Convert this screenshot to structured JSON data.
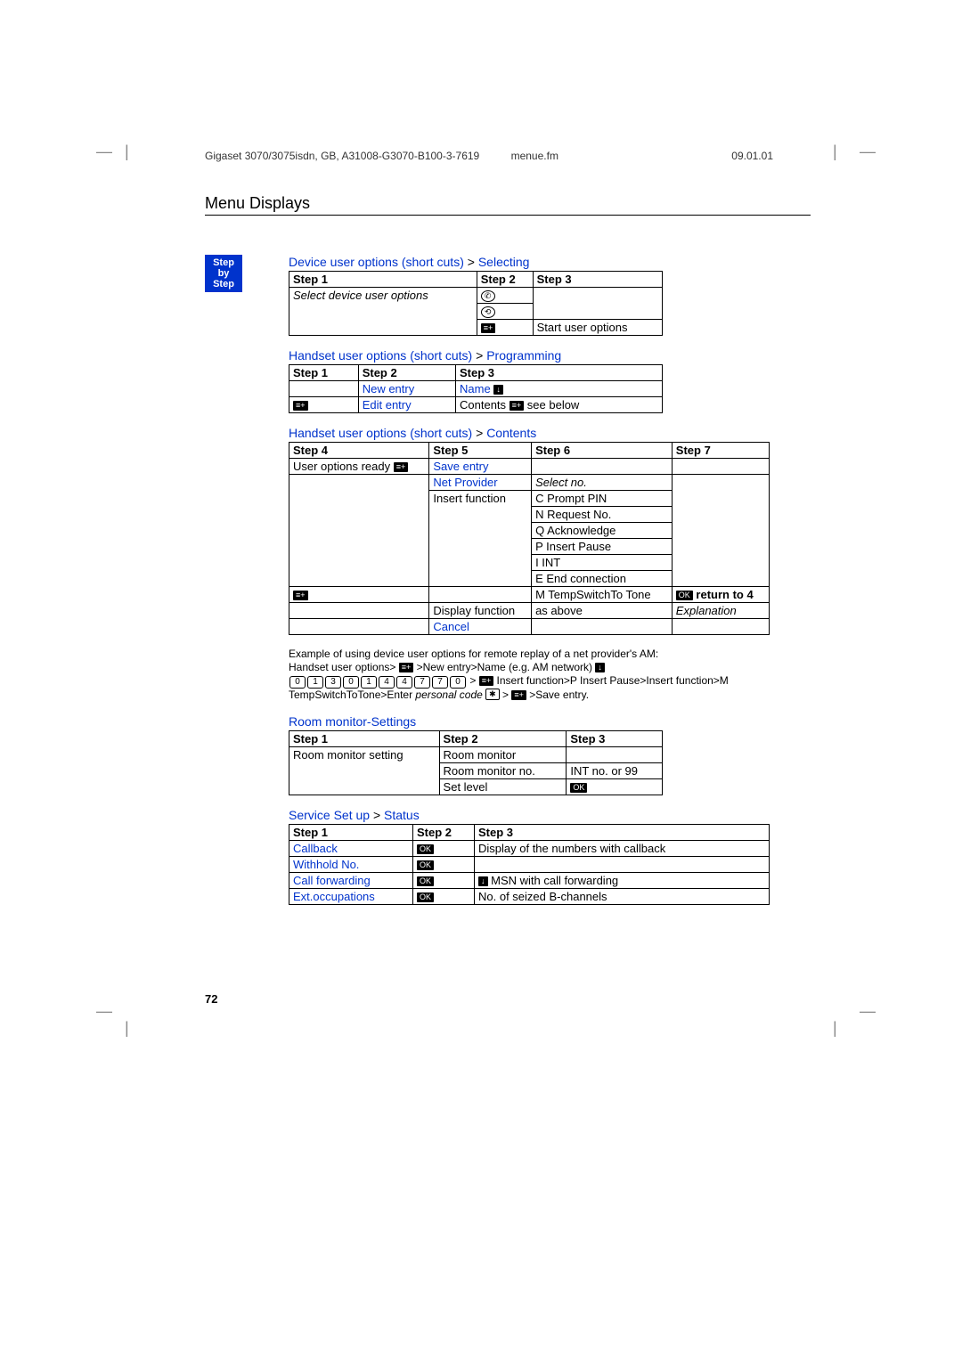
{
  "header": {
    "left": "Gigaset 3070/3075isdn, GB, A31008-G3070-B100-3-7619",
    "mid": "menue.fm",
    "right": "09.01.01"
  },
  "title": "Menu Displays",
  "sideLabel": "Step\nby\nStep",
  "sections": {
    "s1": {
      "title_a": "Device user options (short cuts) ",
      "title_b": "> ",
      "title_c": "Selecting",
      "h1": "Step 1",
      "h2": "Step 2",
      "h3": "Step 3",
      "r1c1": "Select device user options",
      "r3c3": "Start user options"
    },
    "s2": {
      "title_a": "Handset user options (short cuts) ",
      "title_b": "> ",
      "title_c": "Programming",
      "h1": "Step 1",
      "h2": "Step 2",
      "h3": "Step 3",
      "r1c2": "New entry",
      "r1c3": "Name",
      "r2c2": "Edit entry",
      "r2c3a": "Contents ",
      "r2c3b": " see below"
    },
    "s3": {
      "title_a": "Handset user options (short cuts) ",
      "title_b": "> ",
      "title_c": "Contents",
      "h4": "Step 4",
      "h5": "Step 5",
      "h6": "Step 6",
      "h7": "Step 7",
      "r1c1": "User options ready",
      "r1c2": "Save entry",
      "r2c2": "Net Provider",
      "r2c3": "Select no.",
      "r3c2": "Insert function",
      "r3c3a": "C Prompt PIN",
      "r3c3b": "N Request No.",
      "r3c3c": "Q Acknowledge",
      "r3c3d": "P Insert Pause",
      "r3c3e": "I INT",
      "r3c3f": "E End connection",
      "r3c3g": "M TempSwitchTo Tone",
      "r3c4": " return to 4",
      "r4c2": "Display function",
      "r4c3": "as above",
      "r4c4": "Explanation",
      "r5c2": "Cancel"
    },
    "example": {
      "l1": "Example of using device user options for remote replay of a net provider's AM:",
      "l2a": "Handset user options> ",
      "l2b": " >New entry>Name (e.g. AM network) ",
      "keys": [
        "0",
        "1",
        "3",
        "0",
        "1",
        "4",
        "4",
        "7",
        "7",
        "0"
      ],
      "l3a": " > ",
      "l3b": " Insert function>P Insert Pause>Insert function>M TempSwitchToTone>Enter ",
      "l3c": "personal code",
      "l3d": " ",
      "star": "✱",
      "l3e": " > ",
      "l3f": " >Save entry."
    },
    "s4": {
      "title": "Room monitor-Settings",
      "h1": "Step 1",
      "h2": "Step 2",
      "h3": "Step 3",
      "r1c1": "Room monitor setting",
      "r1c2": "Room monitor",
      "r2c2": "Room monitor no.",
      "r2c3": "INT no. or 99",
      "r3c2": "Set level"
    },
    "s5": {
      "title_a": "Service Set up ",
      "title_b": "> ",
      "title_c": "Status",
      "h1": "Step 1",
      "h2": "Step 2",
      "h3": "Step 3",
      "r1c1": "Callback",
      "r1c3": "Display of the numbers with callback",
      "r2c1": "Withhold No.",
      "r3c1": "Call forwarding",
      "r3c3": " MSN with call forwarding",
      "r4c1": "Ext.occupations",
      "r4c3": "No. of seized B-channels"
    }
  },
  "pageNum": "72",
  "ok": "OK",
  "menuIcon": "≡+",
  "downIcon": "↓"
}
